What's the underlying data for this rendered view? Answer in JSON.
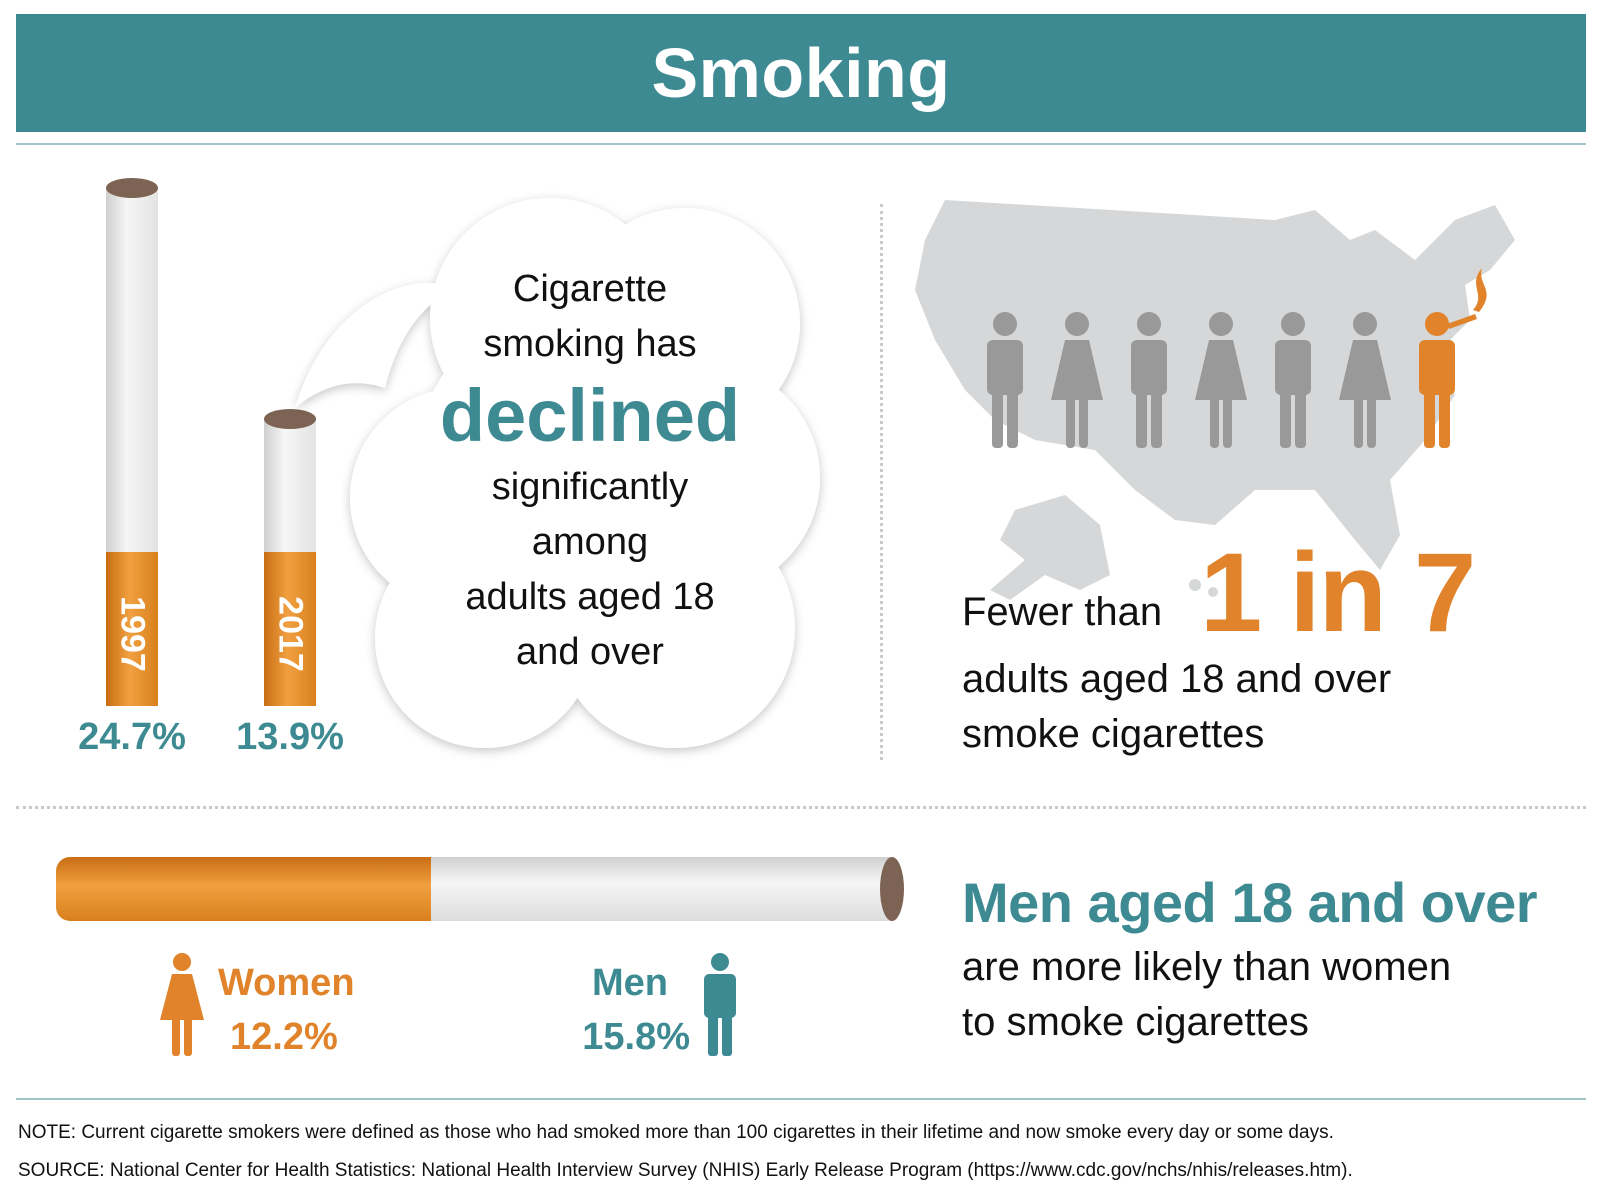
{
  "header": {
    "title": "Smoking"
  },
  "trend": {
    "bars": [
      {
        "year": "1997",
        "value": 24.7,
        "label": "24.7%"
      },
      {
        "year": "2017",
        "value": 13.9,
        "label": "13.9%"
      }
    ],
    "cloud": {
      "line1": "Cigarette",
      "line2": "smoking has",
      "highlight": "declined",
      "line3": "significantly",
      "line4": "among",
      "line5": "adults aged 18",
      "line6": "and over"
    }
  },
  "ratio": {
    "prefix": "Fewer than",
    "big": "1 in 7",
    "suffix_line1": "adults aged 18 and over",
    "suffix_line2": "smoke cigarettes",
    "people": [
      "man",
      "woman",
      "man",
      "woman",
      "man",
      "woman",
      "smoker"
    ]
  },
  "gender": {
    "women": {
      "label": "Women",
      "value": 12.2,
      "pct": "12.2%"
    },
    "men": {
      "label": "Men",
      "value": 15.8,
      "pct": "15.8%"
    },
    "headline": "Men aged 18 and over",
    "sub_line1": "are more likely than women",
    "sub_line2": "to smoke cigarettes"
  },
  "notes": {
    "note": "NOTE: Current cigarette smokers were defined as those who had smoked more than 100 cigarettes in their lifetime and now smoke every day or some days.",
    "source": "SOURCE: National Center for Health Statistics: National Health Interview Survey (NHIS) Early Release Program (https://www.cdc.gov/nchs/nhis/releases.htm)."
  },
  "colors": {
    "teal": "#3d8a92",
    "orange": "#e0832a",
    "gray_figure": "#999999",
    "map": "#d6d7d8"
  }
}
